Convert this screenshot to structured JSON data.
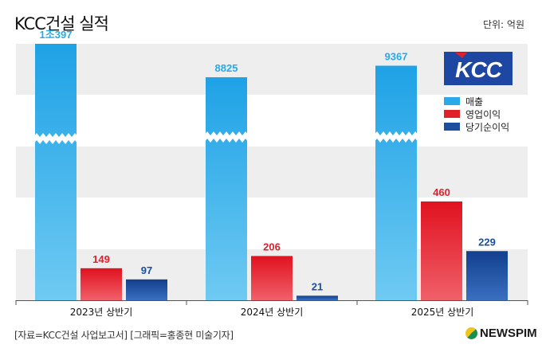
{
  "title": "KCC건설 실적",
  "unit_label": "단위: 억원",
  "source": "[자료=KCC건설 사업보고서] [그래픽=홍종현 미술기자]",
  "brand": "NEWSPIM",
  "company_logo": "KCC",
  "colors": {
    "sales": "#29a9e8",
    "operating": "#e0212c",
    "net": "#1c4e9e"
  },
  "chart_data": {
    "type": "bar",
    "title": "KCC건설 실적",
    "categories": [
      "2023년 상반기",
      "2024년 상반기",
      "2025년 상반기"
    ],
    "series": [
      {
        "name": "매출",
        "values": [
          10397,
          8825,
          9367
        ],
        "labels": [
          "1조397",
          "8825",
          "9367"
        ]
      },
      {
        "name": "영업이익",
        "values": [
          149,
          206,
          460
        ],
        "labels": [
          "149",
          "206",
          "460"
        ]
      },
      {
        "name": "당기순이익",
        "values": [
          97,
          21,
          229
        ],
        "labels": [
          "97",
          "21",
          "229"
        ]
      }
    ],
    "axis_break": true,
    "ylim": [
      0,
      600
    ],
    "legend": "top-right"
  }
}
